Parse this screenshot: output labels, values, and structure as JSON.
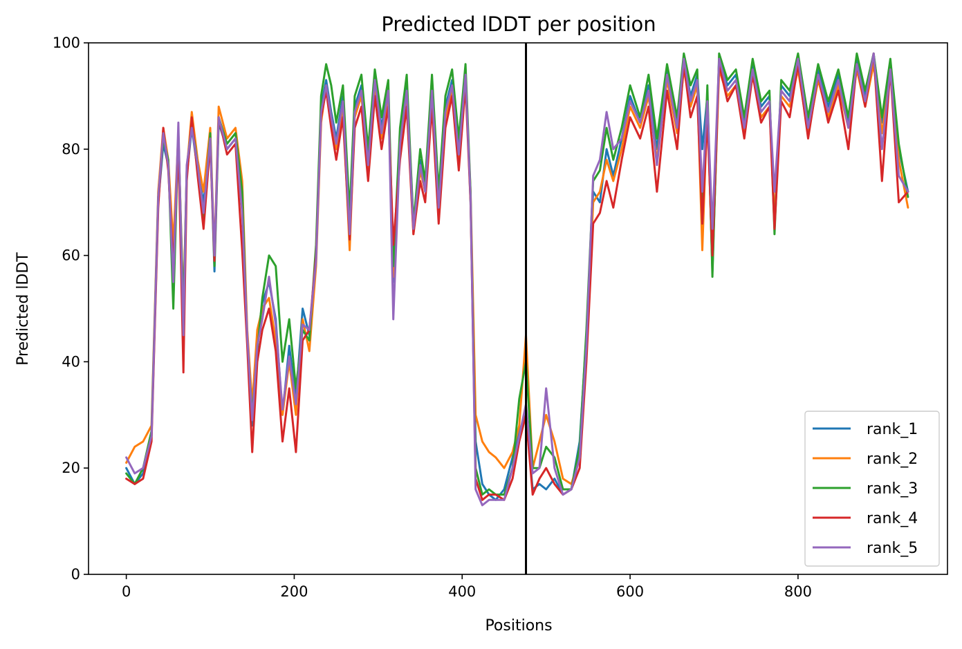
{
  "chart_data": {
    "type": "line",
    "title": "Predicted lDDT per position",
    "xlabel": "Positions",
    "ylabel": "Predicted lDDT",
    "xlim": [
      -45,
      978
    ],
    "ylim": [
      0,
      100
    ],
    "xticks": [
      0,
      200,
      400,
      600,
      800
    ],
    "yticks": [
      0,
      20,
      40,
      60,
      80,
      100
    ],
    "grid": false,
    "legend_position": "lower-right",
    "vline_x": 476,
    "series": [
      {
        "name": "rank_1",
        "color": "#1f77b4",
        "x": [
          0,
          10,
          20,
          30,
          38,
          44,
          50,
          56,
          62,
          68,
          72,
          78,
          85,
          92,
          100,
          105,
          110,
          120,
          130,
          138,
          144,
          150,
          156,
          162,
          170,
          178,
          186,
          194,
          202,
          210,
          218,
          226,
          232,
          238,
          244,
          250,
          258,
          266,
          272,
          280,
          288,
          296,
          304,
          312,
          318,
          326,
          334,
          342,
          350,
          356,
          364,
          372,
          380,
          388,
          396,
          404,
          410,
          416,
          424,
          432,
          440,
          450,
          460,
          468,
          476,
          484,
          492,
          500,
          510,
          520,
          530,
          540,
          548,
          556,
          564,
          572,
          580,
          590,
          600,
          612,
          622,
          632,
          644,
          656,
          664,
          672,
          680,
          686,
          692,
          698,
          706,
          716,
          726,
          736,
          746,
          756,
          766,
          772,
          780,
          790,
          800,
          812,
          824,
          836,
          848,
          860,
          870,
          880,
          890,
          900,
          910,
          920,
          931
        ],
        "values": [
          20,
          17,
          19,
          26,
          70,
          81,
          77,
          60,
          82,
          48,
          75,
          84,
          76,
          70,
          82,
          57,
          85,
          80,
          82,
          70,
          45,
          28,
          44,
          51,
          55,
          48,
          30,
          43,
          33,
          50,
          45,
          60,
          88,
          93,
          87,
          82,
          90,
          65,
          88,
          92,
          78,
          94,
          84,
          92,
          55,
          82,
          92,
          66,
          78,
          73,
          92,
          70,
          88,
          93,
          80,
          95,
          70,
          25,
          17,
          15,
          14,
          16,
          22,
          27,
          30,
          16,
          17,
          16,
          18,
          15,
          16,
          25,
          45,
          72,
          70,
          80,
          75,
          82,
          90,
          85,
          92,
          80,
          95,
          85,
          97,
          90,
          94,
          80,
          90,
          57,
          97,
          92,
          94,
          85,
          96,
          88,
          90,
          66,
          92,
          90,
          97,
          85,
          95,
          88,
          94,
          85,
          97,
          90,
          98,
          85,
          96,
          80,
          72
        ]
      },
      {
        "name": "rank_2",
        "color": "#ff7f0e",
        "x": [
          0,
          10,
          20,
          30,
          38,
          44,
          50,
          56,
          62,
          68,
          72,
          78,
          85,
          92,
          100,
          105,
          110,
          120,
          130,
          138,
          144,
          150,
          156,
          162,
          170,
          178,
          186,
          194,
          202,
          210,
          218,
          226,
          232,
          238,
          244,
          250,
          258,
          266,
          272,
          280,
          288,
          296,
          304,
          312,
          318,
          326,
          334,
          342,
          350,
          356,
          364,
          372,
          380,
          388,
          396,
          404,
          410,
          416,
          424,
          432,
          440,
          450,
          460,
          468,
          476,
          484,
          492,
          500,
          510,
          520,
          530,
          540,
          548,
          556,
          564,
          572,
          580,
          590,
          600,
          612,
          622,
          632,
          644,
          656,
          664,
          672,
          680,
          686,
          692,
          698,
          706,
          716,
          726,
          736,
          746,
          756,
          766,
          772,
          780,
          790,
          800,
          812,
          824,
          836,
          848,
          860,
          870,
          880,
          890,
          900,
          910,
          920,
          931
        ],
        "values": [
          21,
          24,
          25,
          28,
          72,
          84,
          78,
          62,
          83,
          50,
          76,
          87,
          78,
          72,
          84,
          60,
          88,
          82,
          84,
          74,
          46,
          32,
          46,
          50,
          52,
          44,
          30,
          40,
          30,
          48,
          42,
          58,
          85,
          92,
          86,
          80,
          88,
          61,
          86,
          90,
          76,
          92,
          82,
          90,
          56,
          80,
          90,
          64,
          76,
          72,
          90,
          68,
          86,
          91,
          78,
          93,
          72,
          30,
          25,
          23,
          22,
          20,
          23,
          28,
          45,
          20,
          25,
          30,
          25,
          18,
          17,
          22,
          42,
          70,
          72,
          78,
          74,
          80,
          88,
          84,
          90,
          78,
          93,
          83,
          95,
          88,
          92,
          61,
          88,
          58,
          95,
          90,
          92,
          83,
          94,
          86,
          88,
          67,
          90,
          88,
          95,
          83,
          93,
          86,
          92,
          84,
          95,
          88,
          96,
          83,
          94,
          78,
          69
        ]
      },
      {
        "name": "rank_3",
        "color": "#2ca02c",
        "x": [
          0,
          10,
          20,
          30,
          38,
          44,
          50,
          56,
          62,
          68,
          72,
          78,
          85,
          92,
          100,
          105,
          110,
          120,
          130,
          138,
          144,
          150,
          156,
          162,
          170,
          178,
          186,
          194,
          202,
          210,
          218,
          226,
          232,
          238,
          244,
          250,
          258,
          266,
          272,
          280,
          288,
          296,
          304,
          312,
          318,
          326,
          334,
          342,
          350,
          356,
          364,
          372,
          380,
          388,
          396,
          404,
          410,
          416,
          424,
          432,
          440,
          450,
          460,
          468,
          476,
          484,
          492,
          500,
          510,
          520,
          530,
          540,
          548,
          556,
          564,
          572,
          580,
          590,
          600,
          612,
          622,
          632,
          644,
          656,
          664,
          672,
          680,
          686,
          692,
          698,
          706,
          716,
          726,
          736,
          746,
          756,
          766,
          772,
          780,
          790,
          800,
          812,
          824,
          836,
          848,
          860,
          870,
          880,
          890,
          900,
          910,
          920,
          931
        ],
        "values": [
          19,
          17,
          20,
          27,
          71,
          82,
          78,
          50,
          83,
          49,
          76,
          85,
          77,
          67,
          83,
          58,
          86,
          81,
          83,
          72,
          44,
          30,
          42,
          52,
          60,
          58,
          40,
          48,
          35,
          46,
          44,
          62,
          90,
          96,
          92,
          85,
          92,
          68,
          90,
          94,
          80,
          95,
          86,
          93,
          58,
          84,
          94,
          66,
          80,
          74,
          94,
          72,
          90,
          95,
          82,
          96,
          72,
          20,
          15,
          16,
          15,
          15,
          20,
          33,
          40,
          20,
          20,
          24,
          22,
          16,
          16,
          24,
          46,
          74,
          76,
          84,
          78,
          84,
          92,
          86,
          94,
          82,
          96,
          86,
          98,
          92,
          95,
          66,
          92,
          56,
          98,
          93,
          95,
          86,
          97,
          89,
          91,
          64,
          93,
          91,
          98,
          86,
          96,
          89,
          95,
          86,
          98,
          91,
          98,
          86,
          97,
          81,
          71
        ]
      },
      {
        "name": "rank_4",
        "color": "#d62728",
        "x": [
          0,
          10,
          20,
          30,
          38,
          44,
          50,
          56,
          62,
          68,
          72,
          78,
          85,
          92,
          100,
          105,
          110,
          120,
          130,
          138,
          144,
          150,
          156,
          162,
          170,
          178,
          186,
          194,
          202,
          210,
          218,
          226,
          232,
          238,
          244,
          250,
          258,
          266,
          272,
          280,
          288,
          296,
          304,
          312,
          318,
          326,
          334,
          342,
          350,
          356,
          364,
          372,
          380,
          388,
          396,
          404,
          410,
          416,
          424,
          432,
          440,
          450,
          460,
          468,
          476,
          484,
          492,
          500,
          510,
          520,
          530,
          540,
          548,
          556,
          564,
          572,
          580,
          590,
          600,
          612,
          622,
          632,
          644,
          656,
          664,
          672,
          680,
          686,
          692,
          698,
          706,
          716,
          726,
          736,
          746,
          756,
          766,
          772,
          780,
          790,
          800,
          812,
          824,
          836,
          848,
          860,
          870,
          880,
          890,
          900,
          910,
          920,
          931
        ],
        "values": [
          18,
          17,
          18,
          25,
          69,
          84,
          76,
          58,
          81,
          38,
          74,
          86,
          75,
          65,
          81,
          59,
          86,
          79,
          81,
          61,
          43,
          23,
          40,
          46,
          50,
          42,
          25,
          35,
          23,
          44,
          46,
          60,
          86,
          91,
          84,
          78,
          86,
          63,
          84,
          88,
          74,
          90,
          80,
          88,
          62,
          78,
          88,
          64,
          74,
          70,
          88,
          66,
          84,
          90,
          76,
          92,
          70,
          18,
          14,
          15,
          15,
          14,
          18,
          25,
          30,
          15,
          18,
          20,
          17,
          15,
          16,
          20,
          40,
          66,
          68,
          74,
          69,
          78,
          86,
          82,
          88,
          72,
          91,
          80,
          96,
          86,
          90,
          66,
          86,
          60,
          96,
          89,
          92,
          82,
          94,
          85,
          88,
          65,
          89,
          86,
          96,
          82,
          94,
          85,
          91,
          80,
          96,
          88,
          98,
          74,
          95,
          70,
          72
        ]
      },
      {
        "name": "rank_5",
        "color": "#9467bd",
        "x": [
          0,
          10,
          20,
          30,
          38,
          44,
          50,
          56,
          62,
          68,
          72,
          78,
          85,
          92,
          100,
          105,
          110,
          120,
          130,
          138,
          144,
          150,
          156,
          162,
          170,
          178,
          186,
          194,
          202,
          210,
          218,
          226,
          232,
          238,
          244,
          250,
          258,
          266,
          272,
          280,
          288,
          296,
          304,
          312,
          318,
          326,
          334,
          342,
          350,
          356,
          364,
          372,
          380,
          388,
          396,
          404,
          410,
          416,
          424,
          432,
          440,
          450,
          460,
          468,
          476,
          484,
          492,
          500,
          510,
          520,
          530,
          540,
          548,
          556,
          564,
          572,
          580,
          590,
          600,
          612,
          622,
          632,
          644,
          656,
          664,
          672,
          680,
          686,
          692,
          698,
          706,
          716,
          726,
          736,
          746,
          756,
          766,
          772,
          780,
          790,
          800,
          812,
          824,
          836,
          848,
          860,
          870,
          880,
          890,
          900,
          910,
          920,
          931
        ],
        "values": [
          22,
          19,
          20,
          26,
          71,
          83,
          77,
          55,
          85,
          45,
          77,
          84,
          77,
          68,
          82,
          60,
          86,
          80,
          82,
          68,
          45,
          29,
          43,
          48,
          56,
          47,
          31,
          41,
          32,
          47,
          46,
          59,
          87,
          92,
          86,
          81,
          89,
          64,
          87,
          91,
          77,
          93,
          83,
          91,
          48,
          81,
          91,
          65,
          77,
          72,
          91,
          69,
          87,
          92,
          79,
          94,
          71,
          16,
          13,
          14,
          14,
          14,
          20,
          26,
          32,
          19,
          20,
          35,
          20,
          15,
          16,
          22,
          43,
          75,
          78,
          87,
          80,
          82,
          89,
          85,
          91,
          77,
          94,
          84,
          97,
          89,
          93,
          72,
          89,
          65,
          97,
          91,
          93,
          84,
          95,
          87,
          89,
          72,
          91,
          89,
          97,
          84,
          94,
          87,
          93,
          84,
          96,
          89,
          98,
          80,
          95,
          75,
          72
        ]
      }
    ]
  }
}
